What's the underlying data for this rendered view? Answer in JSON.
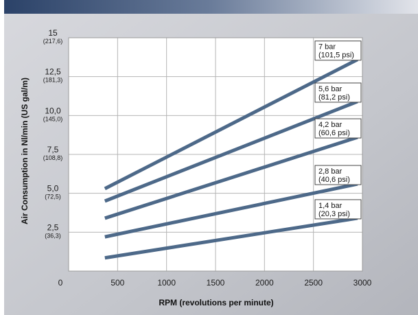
{
  "chart_data": {
    "type": "line",
    "xlabel": "RPM (revolutions per minute)",
    "ylabel": "Air Consumption in Nl/min (US gal/m)",
    "xlim": [
      0,
      3000
    ],
    "ylim": [
      0,
      15
    ],
    "x_ticks": [
      "0",
      "500",
      "1000",
      "1500",
      "2000",
      "2500",
      "3000"
    ],
    "x_tick_values": [
      0,
      500,
      1000,
      1500,
      2000,
      2500,
      3000
    ],
    "y_ticks": [
      {
        "value": 2.5,
        "label": "2,5",
        "sub": "(36,3)"
      },
      {
        "value": 5.0,
        "label": "5,0",
        "sub": "(72,5)"
      },
      {
        "value": 7.5,
        "label": "7,5",
        "sub": "(108,8)"
      },
      {
        "value": 10.0,
        "label": "10,0",
        "sub": "(145,0)"
      },
      {
        "value": 12.5,
        "label": "12,5",
        "sub": "(181,3)"
      },
      {
        "value": 15,
        "label": "15",
        "sub": "(217,6)"
      }
    ],
    "grid": true,
    "series": [
      {
        "name": "7 bar",
        "sub": "(101,5 psi)",
        "x": [
          370,
          2950
        ],
        "y": [
          5.3,
          13.6
        ]
      },
      {
        "name": "5,6 bar",
        "sub": "(81,2 psi)",
        "x": [
          370,
          2950
        ],
        "y": [
          4.5,
          10.9
        ]
      },
      {
        "name": "4,2 bar",
        "sub": "(60,6 psi)",
        "x": [
          370,
          2950
        ],
        "y": [
          3.4,
          8.6
        ]
      },
      {
        "name": "2,8 bar",
        "sub": "(40,6 psi)",
        "x": [
          370,
          2950
        ],
        "y": [
          2.2,
          5.6
        ]
      },
      {
        "name": "1,4 bar",
        "sub": "(20,3 psi)",
        "x": [
          370,
          2950
        ],
        "y": [
          0.85,
          3.4
        ]
      }
    ],
    "colors": {
      "line": "#4d6989",
      "grid": "#b5b5b5",
      "plot_bg": "#ffffff",
      "page_bg": "#c8c9cf"
    }
  }
}
